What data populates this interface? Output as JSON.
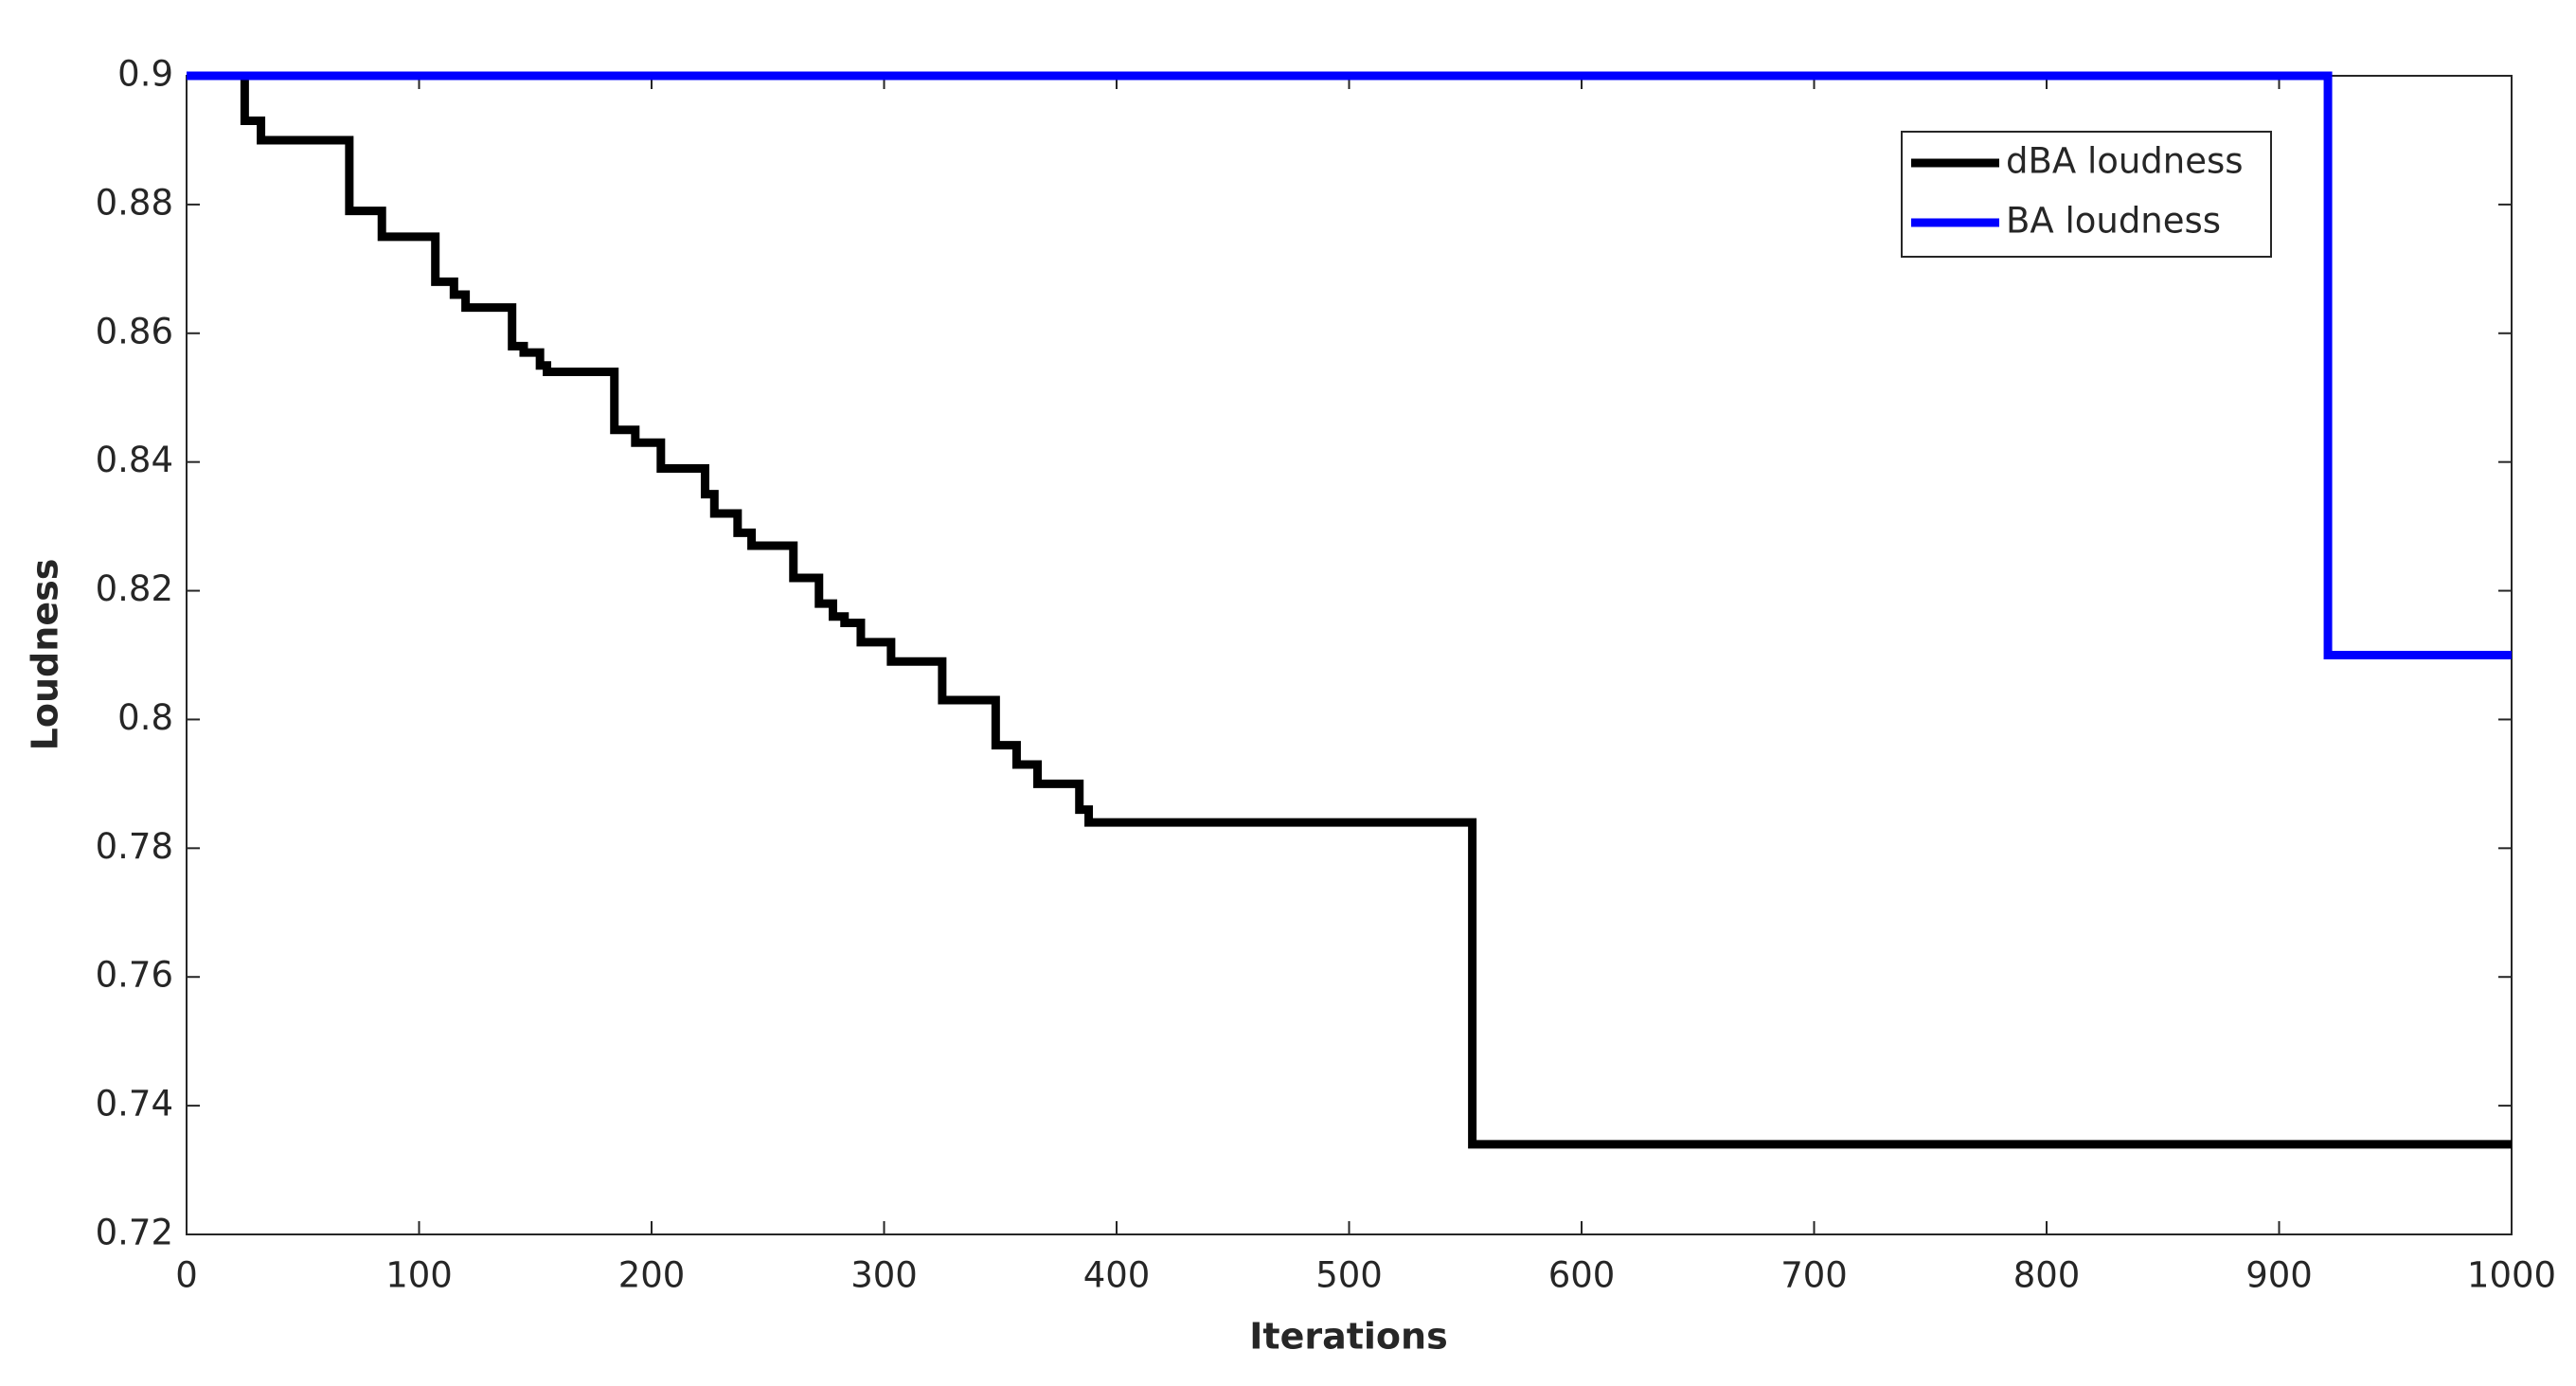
{
  "chart_data": {
    "type": "line",
    "step": true,
    "x_label": "Iterations",
    "y_label": "Loudness",
    "xlim": [
      0,
      1000
    ],
    "xticks": [
      0,
      100,
      200,
      300,
      400,
      500,
      600,
      700,
      800,
      900,
      1000
    ],
    "ylim": [
      0.72,
      0.9
    ],
    "yticks": [
      0.72,
      0.74,
      0.76,
      0.78,
      0.8,
      0.82,
      0.84,
      0.86,
      0.88,
      0.9
    ],
    "grid": false,
    "legend": "upper right",
    "series": [
      {
        "name": "dBA loudness",
        "color": "#000000",
        "x": [
          0,
          25,
          32,
          70,
          84,
          107,
          115,
          120,
          140,
          145,
          152,
          155,
          184,
          193,
          204,
          223,
          227,
          237,
          243,
          261,
          272,
          278,
          283,
          290,
          303,
          325,
          348,
          357,
          366,
          384,
          388,
          553,
          1000
        ],
        "values": [
          0.9,
          0.893,
          0.89,
          0.879,
          0.875,
          0.868,
          0.866,
          0.864,
          0.858,
          0.857,
          0.855,
          0.854,
          0.845,
          0.843,
          0.839,
          0.835,
          0.832,
          0.829,
          0.827,
          0.822,
          0.818,
          0.816,
          0.815,
          0.812,
          0.809,
          0.803,
          0.796,
          0.793,
          0.79,
          0.786,
          0.784,
          0.734,
          0.734
        ]
      },
      {
        "name": "BA loudness",
        "color": "#0000ff",
        "x": [
          0,
          921,
          1000
        ],
        "values": [
          0.9,
          0.81,
          0.81
        ]
      }
    ]
  }
}
